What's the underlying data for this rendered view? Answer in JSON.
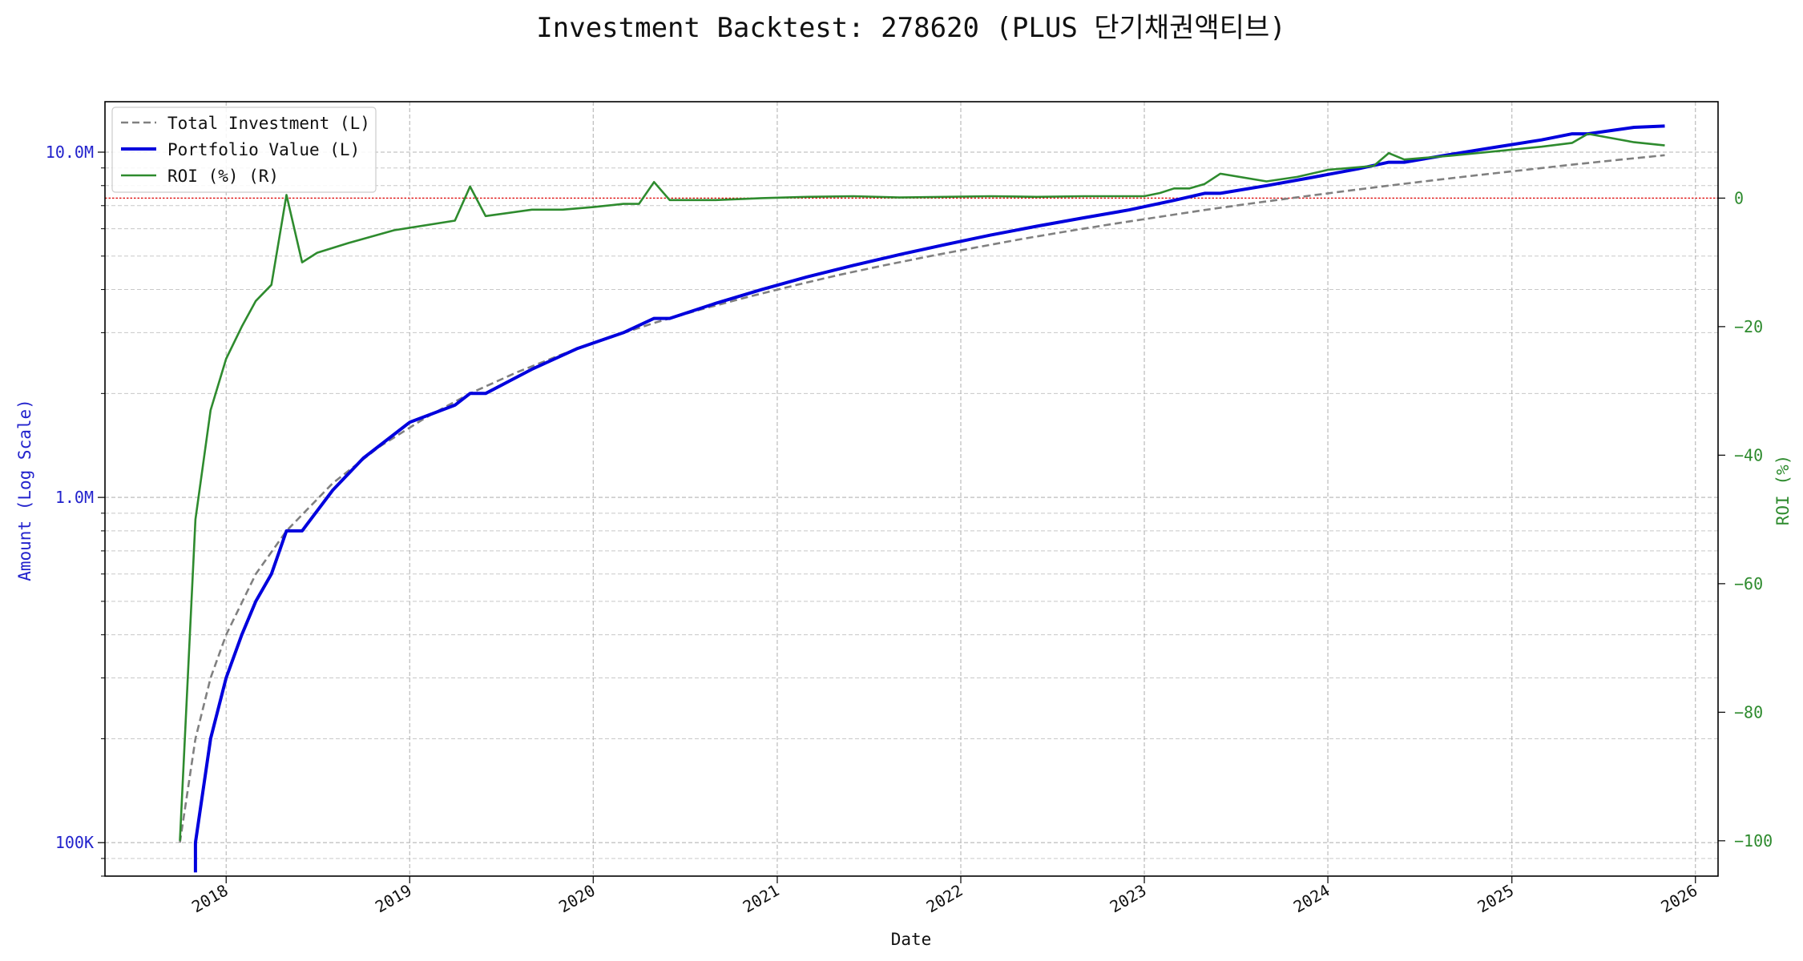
{
  "chart_data": {
    "type": "line",
    "title": "Investment Backtest: 278620 (PLUS 단기채권액티브)",
    "xlabel": "Date",
    "ylabel_left": "Amount (Log Scale)",
    "ylabel_right": "ROI (%)",
    "y_left_scale": "log",
    "y_left_lim": [
      80000,
      14000000
    ],
    "y_right_lim": [
      -105.5,
      15
    ],
    "x_lim": [
      "2017-05-05",
      "2026-02-15"
    ],
    "x_ticks": [
      {
        "date": "2018-01-01",
        "label": "2018"
      },
      {
        "date": "2019-01-01",
        "label": "2019"
      },
      {
        "date": "2020-01-01",
        "label": "2020"
      },
      {
        "date": "2021-01-01",
        "label": "2021"
      },
      {
        "date": "2022-01-01",
        "label": "2022"
      },
      {
        "date": "2023-01-01",
        "label": "2023"
      },
      {
        "date": "2024-01-01",
        "label": "2024"
      },
      {
        "date": "2025-01-01",
        "label": "2025"
      },
      {
        "date": "2026-01-01",
        "label": "2026"
      }
    ],
    "y_left_ticks": [
      {
        "value": 100000,
        "label": "100K"
      },
      {
        "value": 1000000,
        "label": "1.0M"
      },
      {
        "value": 10000000,
        "label": "10.0M"
      }
    ],
    "y_right_ticks": [
      {
        "value": -100,
        "label": "−100"
      },
      {
        "value": -80,
        "label": "−80"
      },
      {
        "value": -60,
        "label": "−60"
      },
      {
        "value": -40,
        "label": "−40"
      },
      {
        "value": -20,
        "label": "−20"
      },
      {
        "value": 0,
        "label": "0"
      }
    ],
    "grid": true,
    "legend_position": "top-left",
    "reference_line": {
      "axis": "right",
      "value": 0,
      "color": "#dd0000"
    },
    "series": [
      {
        "name": "Total Investment (L)",
        "axis": "left",
        "color": "#808080",
        "style": "dashed",
        "x": [
          "2017-10-01",
          "2017-11-01",
          "2017-12-01",
          "2018-01-01",
          "2018-03-01",
          "2018-05-01",
          "2018-08-01",
          "2018-11-01",
          "2019-02-01",
          "2019-05-01",
          "2019-08-01",
          "2019-11-01",
          "2020-02-01",
          "2020-05-01",
          "2020-08-01",
          "2020-11-01",
          "2021-02-01",
          "2021-05-01",
          "2021-08-01",
          "2021-11-01",
          "2022-02-01",
          "2022-05-01",
          "2022-08-01",
          "2022-11-01",
          "2023-02-01",
          "2023-05-01",
          "2023-08-01",
          "2023-11-01",
          "2024-02-01",
          "2024-05-01",
          "2024-08-01",
          "2024-11-01",
          "2025-02-01",
          "2025-05-01",
          "2025-08-01",
          "2025-11-01"
        ],
        "y": [
          100000,
          200000,
          300000,
          400000,
          600000,
          800000,
          1100000,
          1400000,
          1700000,
          2000000,
          2300000,
          2600000,
          2900000,
          3200000,
          3500000,
          3800000,
          4100000,
          4400000,
          4700000,
          5000000,
          5300000,
          5600000,
          5900000,
          6200000,
          6500000,
          6800000,
          7100000,
          7400000,
          7700000,
          8000000,
          8300000,
          8600000,
          8900000,
          9200000,
          9500000,
          9800000
        ]
      },
      {
        "name": "Portfolio Value (L)",
        "axis": "left",
        "color": "#0000dd",
        "style": "solid",
        "x": [
          "2017-11-01",
          "2017-11-01",
          "2017-12-01",
          "2018-01-01",
          "2018-02-01",
          "2018-03-01",
          "2018-04-01",
          "2018-05-01",
          "2018-06-01",
          "2018-08-01",
          "2018-10-01",
          "2019-01-01",
          "2019-04-01",
          "2019-05-01",
          "2019-06-01",
          "2019-09-01",
          "2019-12-01",
          "2020-03-01",
          "2020-05-01",
          "2020-06-01",
          "2020-09-01",
          "2020-12-01",
          "2021-03-01",
          "2021-06-01",
          "2021-09-01",
          "2021-12-01",
          "2022-03-01",
          "2022-06-01",
          "2022-09-01",
          "2022-12-01",
          "2023-03-01",
          "2023-05-01",
          "2023-06-01",
          "2023-09-01",
          "2023-12-01",
          "2024-03-01",
          "2024-05-01",
          "2024-06-01",
          "2024-09-01",
          "2024-12-01",
          "2025-03-01",
          "2025-05-01",
          "2025-06-01",
          "2025-09-01",
          "2025-11-01"
        ],
        "y": [
          82000,
          100000,
          200000,
          300000,
          400000,
          500000,
          600000,
          800000,
          800000,
          1050000,
          1300000,
          1650000,
          1850000,
          2000000,
          2000000,
          2350000,
          2700000,
          3000000,
          3300000,
          3300000,
          3650000,
          4000000,
          4350000,
          4700000,
          5050000,
          5400000,
          5750000,
          6100000,
          6450000,
          6800000,
          7250000,
          7600000,
          7600000,
          8000000,
          8450000,
          8950000,
          9350000,
          9350000,
          9850000,
          10350000,
          10850000,
          11300000,
          11300000,
          11800000,
          11900000
        ]
      },
      {
        "name": "ROI (%) (R)",
        "axis": "right",
        "color": "#2e8b2e",
        "style": "solid",
        "x": [
          "2017-10-01",
          "2017-11-01",
          "2017-12-01",
          "2018-01-01",
          "2018-02-01",
          "2018-03-01",
          "2018-04-01",
          "2018-05-01",
          "2018-06-01",
          "2018-07-01",
          "2018-09-01",
          "2018-12-01",
          "2019-04-01",
          "2019-05-01",
          "2019-06-01",
          "2019-09-01",
          "2019-11-01",
          "2020-01-01",
          "2020-03-01",
          "2020-04-01",
          "2020-05-01",
          "2020-06-01",
          "2020-09-01",
          "2020-12-01",
          "2021-03-01",
          "2021-06-01",
          "2021-09-01",
          "2021-12-01",
          "2022-03-01",
          "2022-06-01",
          "2022-09-01",
          "2022-12-01",
          "2023-01-01",
          "2023-02-01",
          "2023-03-01",
          "2023-04-01",
          "2023-05-01",
          "2023-06-01",
          "2023-09-01",
          "2023-11-01",
          "2024-01-01",
          "2024-04-01",
          "2024-05-01",
          "2024-06-01",
          "2024-09-01",
          "2024-12-01",
          "2025-03-01",
          "2025-05-01",
          "2025-06-01",
          "2025-09-01",
          "2025-11-01"
        ],
        "y": [
          -100,
          -50,
          -33,
          -25,
          -20,
          -16,
          -13.5,
          0.5,
          -10,
          -8.5,
          -7,
          -5,
          -3.5,
          1.8,
          -2.8,
          -1.8,
          -1.8,
          -1.4,
          -0.9,
          -0.9,
          2.5,
          -0.3,
          -0.3,
          0,
          0.2,
          0.3,
          0.1,
          0.2,
          0.3,
          0.2,
          0.3,
          0.3,
          0.3,
          0.8,
          1.5,
          1.5,
          2.2,
          3.8,
          2.6,
          3.3,
          4.4,
          5,
          7,
          6,
          6.6,
          7.3,
          8,
          8.6,
          10,
          8.7,
          8.2
        ]
      }
    ]
  }
}
